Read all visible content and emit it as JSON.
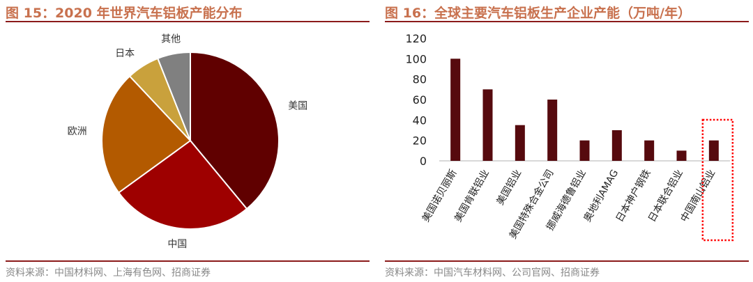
{
  "chart_data": [
    {
      "type": "pie",
      "title": "图 15：2020 年世界汽车铝板产能分布",
      "categories": [
        "美国",
        "中国",
        "欧洲",
        "日本",
        "其他"
      ],
      "values": [
        39,
        26,
        23,
        6,
        6
      ],
      "colors": [
        "#600000",
        "#9e0000",
        "#b35a00",
        "#c9a13c",
        "#808080"
      ],
      "source": "资料来源：中国材料网、上海有色网、招商证券"
    },
    {
      "type": "bar",
      "title": "图 16：全球主要汽车铝板生产企业产能（万吨/年）",
      "categories": [
        "美国诺贝丽斯",
        "美国肯联铝业",
        "美国铝业",
        "美国特殊合金公司",
        "挪威海德鲁铝业",
        "奥地利AMAG",
        "日本神户钢铁",
        "日本联合铝业",
        "中国南山铝业"
      ],
      "values": [
        100,
        70,
        35,
        60,
        20,
        30,
        20,
        10,
        20
      ],
      "ylim": [
        0,
        120
      ],
      "yticks": [
        0,
        20,
        40,
        60,
        80,
        100,
        120
      ],
      "color": "#560a0e",
      "highlight": "中国南山铝业",
      "highlight_color": "#ff0000",
      "source": "资料来源：中国汽车材料网、公司官网、招商证券"
    }
  ]
}
